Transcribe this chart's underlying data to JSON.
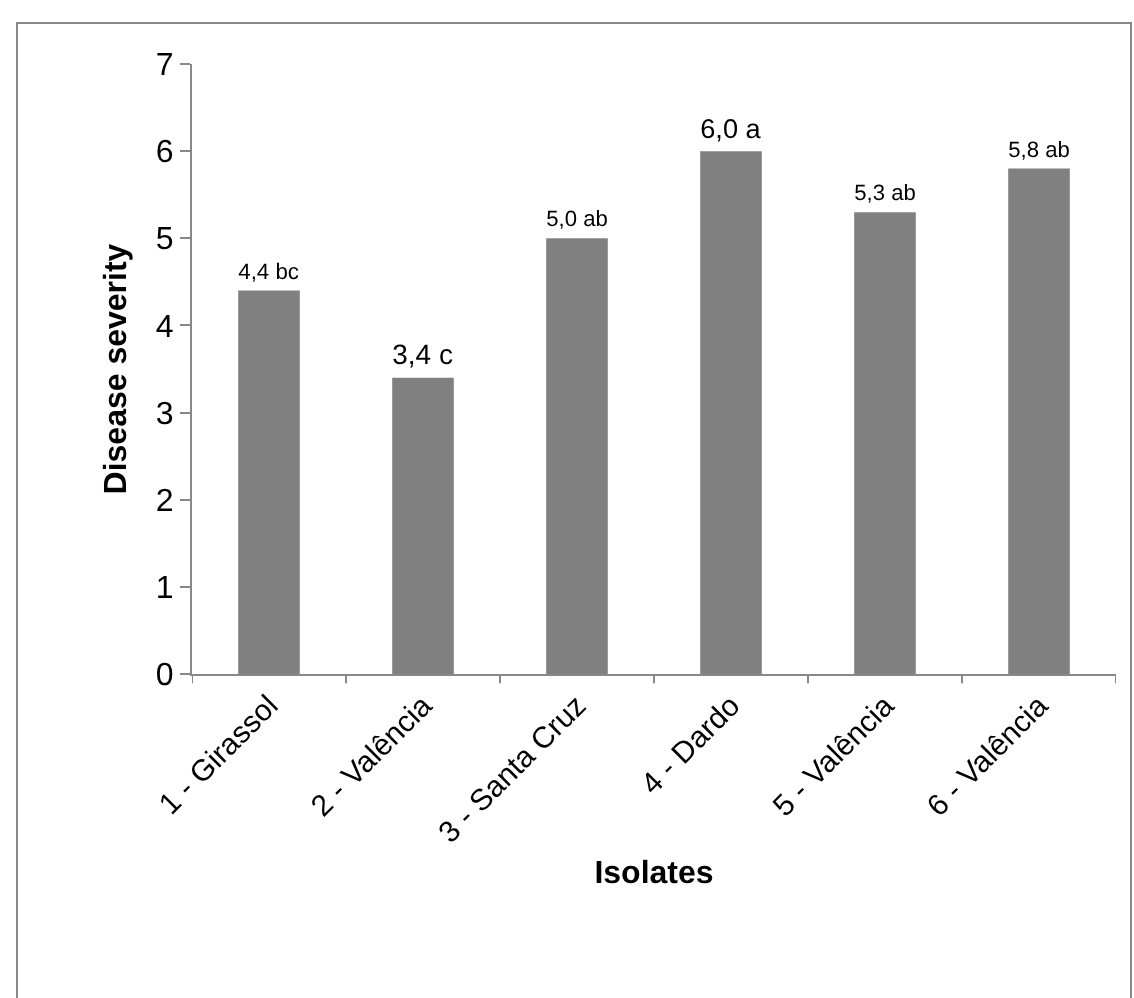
{
  "chart_data": {
    "type": "bar",
    "xlabel": "Isolates",
    "ylabel": "Disease severity",
    "categories": [
      "1 - Girassol",
      "2 - Valência",
      "3 - Santa Cruz",
      "4 - Dardo",
      "5 - Valência",
      "6 - Valência"
    ],
    "series": [
      {
        "color": "#808080",
        "values": [
          4.4,
          3.4,
          5.0,
          6.0,
          5.3,
          5.8
        ],
        "value_labels": [
          "4,4 bc",
          "3,4 c",
          "5,0 ab",
          "6,0 a",
          "5,3 ab",
          "5,8 ab"
        ]
      }
    ],
    "ylim": [
      0,
      7
    ],
    "yticks": [
      0,
      1,
      2,
      3,
      4,
      5,
      6,
      7
    ],
    "grid": false,
    "legend": false
  }
}
